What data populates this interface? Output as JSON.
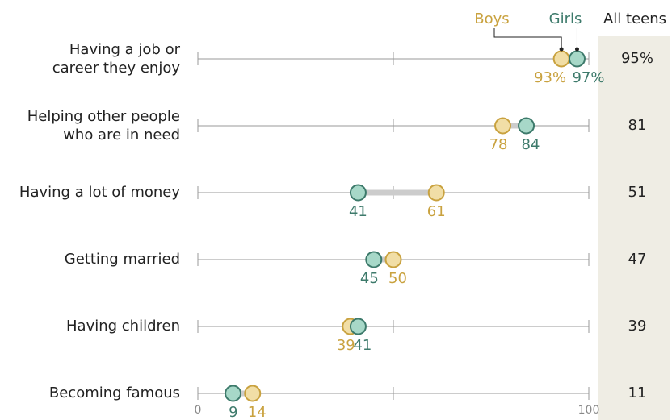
{
  "chart_data": {
    "type": "dot",
    "categories": [
      [
        "Having a job or",
        "career they enjoy"
      ],
      [
        "Helping other people",
        "who are in need"
      ],
      [
        "Having a lot of money"
      ],
      [
        "Getting married"
      ],
      [
        "Having children"
      ],
      [
        "Becoming famous"
      ]
    ],
    "series": [
      {
        "name": "Boys",
        "color": "#c9a23f",
        "fill": "#f1dea6",
        "values": [
          93,
          78,
          61,
          50,
          39,
          14
        ],
        "value_labels": [
          "93%",
          "78",
          "61",
          "50",
          "39",
          "14"
        ]
      },
      {
        "name": "Girls",
        "color": "#3d7a6b",
        "fill": "#a7d8c8",
        "values": [
          97,
          84,
          41,
          45,
          41,
          9
        ],
        "value_labels": [
          "97%",
          "84",
          "41",
          "45",
          "41",
          "9"
        ]
      },
      {
        "name": "All teens",
        "values": [
          95,
          81,
          51,
          47,
          39,
          11
        ],
        "value_labels": [
          "95%",
          "81",
          "51",
          "47",
          "39",
          "11"
        ]
      }
    ],
    "xlim": [
      0,
      100
    ],
    "xticks": [
      0,
      100
    ],
    "minor_xticks": [
      50
    ]
  }
}
